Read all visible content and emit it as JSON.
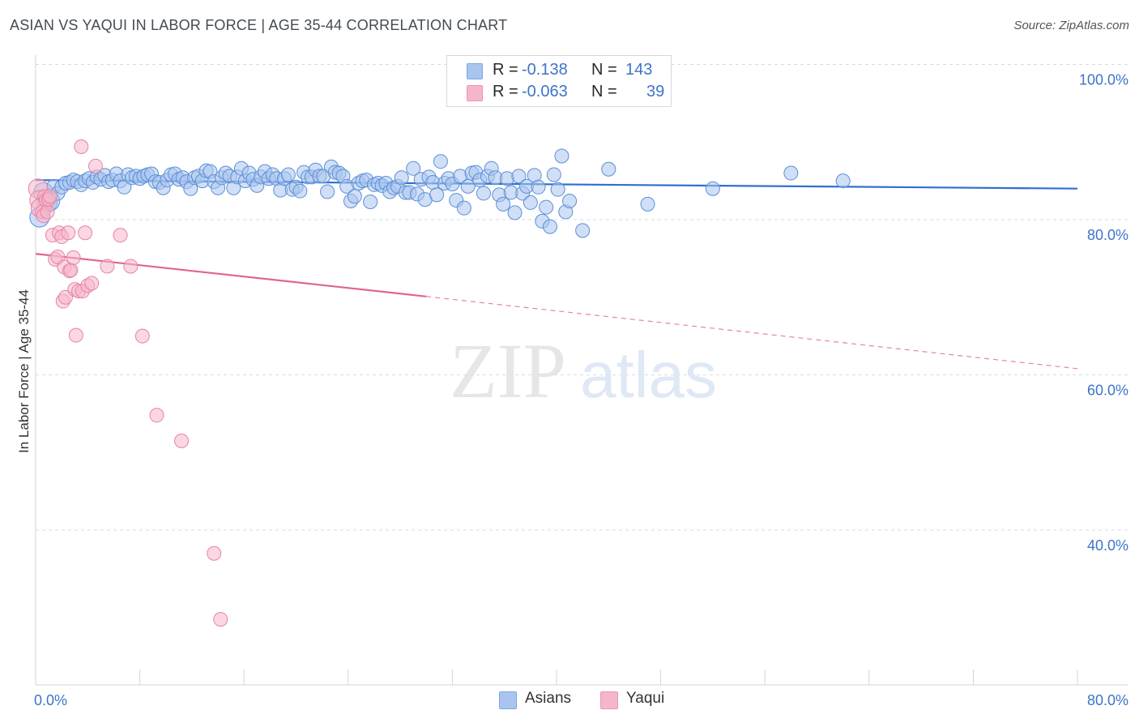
{
  "title": "ASIAN VS YAQUI IN LABOR FORCE | AGE 35-44 CORRELATION CHART",
  "source": "Source: ZipAtlas.com",
  "watermark": {
    "zip": "ZIP",
    "atlas": "atlas"
  },
  "legend": {
    "rows": [
      {
        "r_label": "R =",
        "r_value": "-0.138",
        "n_label": "N =",
        "n_value": "143",
        "color": "#a9c4ee"
      },
      {
        "r_label": "R =",
        "r_value": "-0.063",
        "n_label": "N =",
        "n_value": "39",
        "color": "#f5b6cb"
      }
    ]
  },
  "bottom_legend": [
    {
      "label": "Asians",
      "color": "#a9c4ee"
    },
    {
      "label": "Yaqui",
      "color": "#f5b6cb"
    }
  ],
  "colors": {
    "asians_fill": "#a9c4ee",
    "asians_stroke": "#5b8fd6",
    "asians_line": "#2f6fcf",
    "yaqui_fill": "#f5b6cb",
    "yaqui_stroke": "#e783a5",
    "yaqui_line": "#e0648f",
    "grid": "#d6dbe3",
    "axis_text": "#3d74c9"
  },
  "chart_data": {
    "type": "scatter",
    "title": "ASIAN VS YAQUI IN LABOR FORCE | AGE 35-44 CORRELATION CHART",
    "xlabel": "",
    "ylabel": "In Labor Force | Age 35-44",
    "xlim": [
      0,
      80
    ],
    "ylim": [
      20,
      102
    ],
    "x_tick_labels": [
      "0.0%",
      "80.0%"
    ],
    "y_ticks": [
      {
        "value": 100,
        "label": "100.0%"
      },
      {
        "value": 80,
        "label": "80.0%"
      },
      {
        "value": 60,
        "label": "60.0%"
      },
      {
        "value": 40,
        "label": "40.0%"
      }
    ],
    "grid": true,
    "series": [
      {
        "name": "Asians",
        "r": -0.138,
        "n": 143,
        "trend": {
          "x0": 0,
          "y0": 85.1,
          "x1": 80,
          "y1": 84.0
        },
        "points": [
          [
            0.3,
            80.3
          ],
          [
            0.6,
            83.5
          ],
          [
            0.9,
            82.2
          ],
          [
            1.1,
            82.4
          ],
          [
            1.4,
            84.3
          ],
          [
            1.7,
            83.4
          ],
          [
            2.0,
            84.2
          ],
          [
            2.3,
            84.7
          ],
          [
            2.6,
            84.8
          ],
          [
            2.9,
            85.1
          ],
          [
            3.2,
            84.9
          ],
          [
            3.5,
            84.5
          ],
          [
            3.8,
            85.0
          ],
          [
            4.1,
            85.3
          ],
          [
            4.4,
            84.8
          ],
          [
            4.7,
            85.5
          ],
          [
            5.0,
            85.2
          ],
          [
            5.3,
            85.7
          ],
          [
            5.6,
            84.9
          ],
          [
            5.9,
            85.1
          ],
          [
            6.2,
            85.9
          ],
          [
            6.5,
            85.0
          ],
          [
            6.8,
            84.2
          ],
          [
            7.1,
            85.8
          ],
          [
            7.4,
            85.4
          ],
          [
            7.7,
            85.6
          ],
          [
            8.0,
            85.3
          ],
          [
            8.3,
            85.6
          ],
          [
            8.6,
            85.8
          ],
          [
            8.9,
            85.9
          ],
          [
            9.2,
            84.9
          ],
          [
            9.5,
            84.8
          ],
          [
            9.8,
            84.1
          ],
          [
            10.1,
            85.1
          ],
          [
            10.4,
            85.8
          ],
          [
            10.7,
            85.9
          ],
          [
            11.0,
            85.2
          ],
          [
            11.3,
            85.4
          ],
          [
            11.6,
            84.9
          ],
          [
            11.9,
            84.0
          ],
          [
            12.2,
            85.4
          ],
          [
            12.5,
            85.6
          ],
          [
            12.8,
            85.0
          ],
          [
            13.1,
            86.3
          ],
          [
            13.4,
            86.2
          ],
          [
            13.7,
            84.9
          ],
          [
            14.0,
            84.1
          ],
          [
            14.3,
            85.4
          ],
          [
            14.6,
            86.0
          ],
          [
            14.9,
            85.6
          ],
          [
            15.2,
            84.1
          ],
          [
            15.5,
            85.5
          ],
          [
            15.8,
            86.6
          ],
          [
            16.1,
            85.0
          ],
          [
            16.4,
            86.0
          ],
          [
            16.7,
            85.2
          ],
          [
            17.0,
            84.4
          ],
          [
            17.3,
            85.5
          ],
          [
            17.6,
            86.2
          ],
          [
            17.9,
            85.3
          ],
          [
            18.2,
            85.8
          ],
          [
            18.5,
            85.3
          ],
          [
            18.8,
            83.8
          ],
          [
            19.1,
            85.3
          ],
          [
            19.4,
            85.8
          ],
          [
            19.7,
            83.9
          ],
          [
            20.0,
            84.2
          ],
          [
            20.3,
            83.7
          ],
          [
            20.6,
            86.1
          ],
          [
            20.9,
            85.5
          ],
          [
            21.2,
            85.5
          ],
          [
            21.5,
            86.4
          ],
          [
            21.8,
            85.6
          ],
          [
            22.1,
            85.6
          ],
          [
            22.4,
            83.6
          ],
          [
            22.7,
            86.8
          ],
          [
            23.0,
            86.1
          ],
          [
            23.3,
            86.0
          ],
          [
            23.6,
            85.6
          ],
          [
            23.9,
            84.3
          ],
          [
            24.2,
            82.4
          ],
          [
            24.5,
            83.0
          ],
          [
            24.8,
            84.7
          ],
          [
            25.1,
            85.0
          ],
          [
            25.4,
            85.1
          ],
          [
            25.7,
            82.3
          ],
          [
            26.0,
            84.5
          ],
          [
            26.3,
            84.7
          ],
          [
            26.6,
            84.4
          ],
          [
            26.9,
            84.7
          ],
          [
            27.2,
            83.6
          ],
          [
            27.5,
            84.1
          ],
          [
            27.8,
            84.3
          ],
          [
            28.1,
            85.4
          ],
          [
            28.4,
            83.5
          ],
          [
            28.7,
            83.5
          ],
          [
            29.0,
            86.6
          ],
          [
            29.3,
            83.3
          ],
          [
            29.6,
            85.2
          ],
          [
            29.9,
            82.6
          ],
          [
            30.2,
            85.5
          ],
          [
            30.5,
            84.8
          ],
          [
            30.8,
            83.2
          ],
          [
            31.1,
            87.5
          ],
          [
            31.4,
            84.7
          ],
          [
            31.7,
            85.3
          ],
          [
            32.0,
            84.6
          ],
          [
            32.3,
            82.5
          ],
          [
            32.6,
            85.6
          ],
          [
            32.9,
            81.5
          ],
          [
            33.2,
            84.3
          ],
          [
            33.5,
            86.0
          ],
          [
            33.8,
            86.1
          ],
          [
            34.1,
            85.1
          ],
          [
            34.4,
            83.4
          ],
          [
            34.7,
            85.6
          ],
          [
            35.0,
            86.6
          ],
          [
            35.3,
            85.4
          ],
          [
            35.6,
            83.2
          ],
          [
            35.9,
            82.0
          ],
          [
            36.2,
            85.3
          ],
          [
            36.5,
            83.5
          ],
          [
            36.8,
            80.9
          ],
          [
            37.1,
            85.6
          ],
          [
            37.4,
            83.4
          ],
          [
            37.7,
            84.3
          ],
          [
            38.0,
            82.2
          ],
          [
            38.3,
            85.7
          ],
          [
            38.6,
            84.2
          ],
          [
            38.9,
            79.8
          ],
          [
            39.2,
            81.6
          ],
          [
            39.5,
            79.1
          ],
          [
            39.8,
            85.8
          ],
          [
            40.1,
            83.9
          ],
          [
            40.4,
            88.2
          ],
          [
            40.7,
            81.0
          ],
          [
            41.0,
            82.4
          ],
          [
            42.0,
            78.6
          ],
          [
            44.0,
            86.5
          ],
          [
            47.0,
            82.0
          ],
          [
            52.0,
            84.0
          ],
          [
            58.0,
            86.0
          ],
          [
            62.0,
            85.0
          ]
        ]
      },
      {
        "name": "Yaqui",
        "r": -0.063,
        "n": 39,
        "trend": {
          "x0": 0,
          "y0": 75.6,
          "x1": 30,
          "y1": 70.1,
          "dashed_to_x": 80,
          "dashed_to_y": 60.8
        },
        "points": [
          [
            0.2,
            84.0
          ],
          [
            0.3,
            82.5
          ],
          [
            0.4,
            81.5
          ],
          [
            0.5,
            81.0
          ],
          [
            0.6,
            80.5
          ],
          [
            0.7,
            83.0
          ],
          [
            0.8,
            82.5
          ],
          [
            0.9,
            81.0
          ],
          [
            1.0,
            82.6
          ],
          [
            1.1,
            83.0
          ],
          [
            1.3,
            78.0
          ],
          [
            1.5,
            74.9
          ],
          [
            1.7,
            75.2
          ],
          [
            1.8,
            78.3
          ],
          [
            2.0,
            77.8
          ],
          [
            2.1,
            69.5
          ],
          [
            2.2,
            73.9
          ],
          [
            2.3,
            70.0
          ],
          [
            2.5,
            78.3
          ],
          [
            2.6,
            73.4
          ],
          [
            2.7,
            73.5
          ],
          [
            2.9,
            75.1
          ],
          [
            3.0,
            71.0
          ],
          [
            3.1,
            65.1
          ],
          [
            3.3,
            70.8
          ],
          [
            3.5,
            89.4
          ],
          [
            3.6,
            70.8
          ],
          [
            3.8,
            78.3
          ],
          [
            4.0,
            71.5
          ],
          [
            4.3,
            71.8
          ],
          [
            4.6,
            86.9
          ],
          [
            5.5,
            74.0
          ],
          [
            6.5,
            78.0
          ],
          [
            7.3,
            74.0
          ],
          [
            8.2,
            65.0
          ],
          [
            9.3,
            54.8
          ],
          [
            11.2,
            51.5
          ],
          [
            13.7,
            37.0
          ],
          [
            14.2,
            28.5
          ]
        ]
      }
    ]
  }
}
